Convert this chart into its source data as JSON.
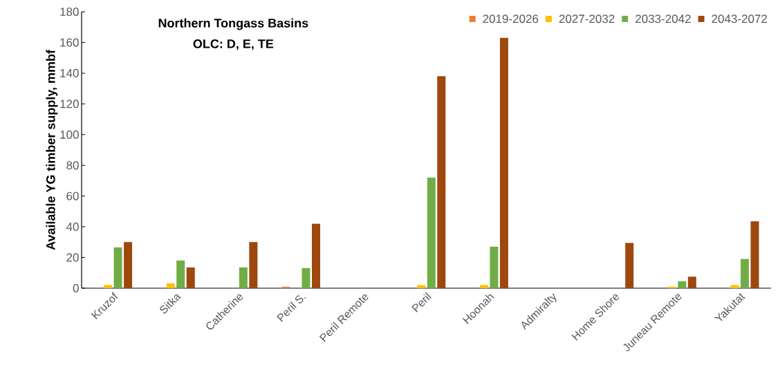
{
  "chart_data": {
    "type": "bar",
    "title": "Northern Tongass Basins",
    "subtitle": "OLC: D, E, TE",
    "ylabel": "Available YG timber supply, mmbf",
    "categories": [
      "Kruzof",
      "Sitka",
      "Catherine",
      "Peril S.",
      "Peril Remote",
      "Peril",
      "Hoonah",
      "Admiralty",
      "Home Shore",
      "Juneau Remote",
      "Yakutat"
    ],
    "series": [
      {
        "name": "2019-2026",
        "color": "#ed7d31",
        "values": [
          null,
          null,
          null,
          1,
          null,
          null,
          null,
          null,
          null,
          null,
          null
        ]
      },
      {
        "name": "2027-2032",
        "color": "#ffc000",
        "values": [
          2,
          3.3,
          null,
          null,
          null,
          2,
          2,
          null,
          null,
          1,
          2
        ]
      },
      {
        "name": "2033-2042",
        "color": "#70ad47",
        "values": [
          26.5,
          18,
          13.5,
          13,
          null,
          72,
          27,
          null,
          null,
          4.5,
          19
        ]
      },
      {
        "name": "2043-2072",
        "color": "#9e480e",
        "values": [
          30,
          13.5,
          30,
          42,
          null,
          138,
          163,
          null,
          29.5,
          7.5,
          43.5
        ]
      }
    ],
    "ylim": [
      0,
      180
    ],
    "yticks": [
      0,
      20,
      40,
      60,
      80,
      100,
      120,
      140,
      160,
      180
    ],
    "grid": false,
    "legend": "top right"
  }
}
